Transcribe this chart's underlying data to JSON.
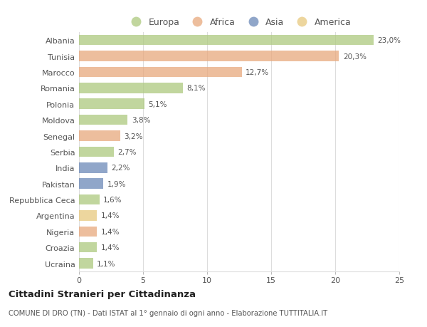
{
  "countries": [
    "Albania",
    "Tunisia",
    "Marocco",
    "Romania",
    "Polonia",
    "Moldova",
    "Senegal",
    "Serbia",
    "India",
    "Pakistan",
    "Repubblica Ceca",
    "Argentina",
    "Nigeria",
    "Croazia",
    "Ucraina"
  ],
  "values": [
    23.0,
    20.3,
    12.7,
    8.1,
    5.1,
    3.8,
    3.2,
    2.7,
    2.2,
    1.9,
    1.6,
    1.4,
    1.4,
    1.4,
    1.1
  ],
  "labels": [
    "23,0%",
    "20,3%",
    "12,7%",
    "8,1%",
    "5,1%",
    "3,8%",
    "3,2%",
    "2,7%",
    "2,2%",
    "1,9%",
    "1,6%",
    "1,4%",
    "1,4%",
    "1,4%",
    "1,1%"
  ],
  "categories": [
    "Europa",
    "Africa",
    "Asia",
    "America"
  ],
  "bar_colors": [
    "#adc97e",
    "#e8a87c",
    "#e8a87c",
    "#adc97e",
    "#adc97e",
    "#adc97e",
    "#e8a87c",
    "#adc97e",
    "#6b88b8",
    "#6b88b8",
    "#adc97e",
    "#e8c97e",
    "#e8a87c",
    "#adc97e",
    "#adc97e"
  ],
  "legend_colors": [
    "#adc97e",
    "#e8a87c",
    "#6b88b8",
    "#e8c97e"
  ],
  "title": "Cittadini Stranieri per Cittadinanza",
  "subtitle": "COMUNE DI DRO (TN) - Dati ISTAT al 1° gennaio di ogni anno - Elaborazione TUTTITALIA.IT",
  "xlim": [
    0,
    25
  ],
  "xticks": [
    0,
    5,
    10,
    15,
    20,
    25
  ],
  "background_color": "#ffffff",
  "grid_color": "#dddddd",
  "bar_alpha": 0.75,
  "bar_height": 0.65
}
